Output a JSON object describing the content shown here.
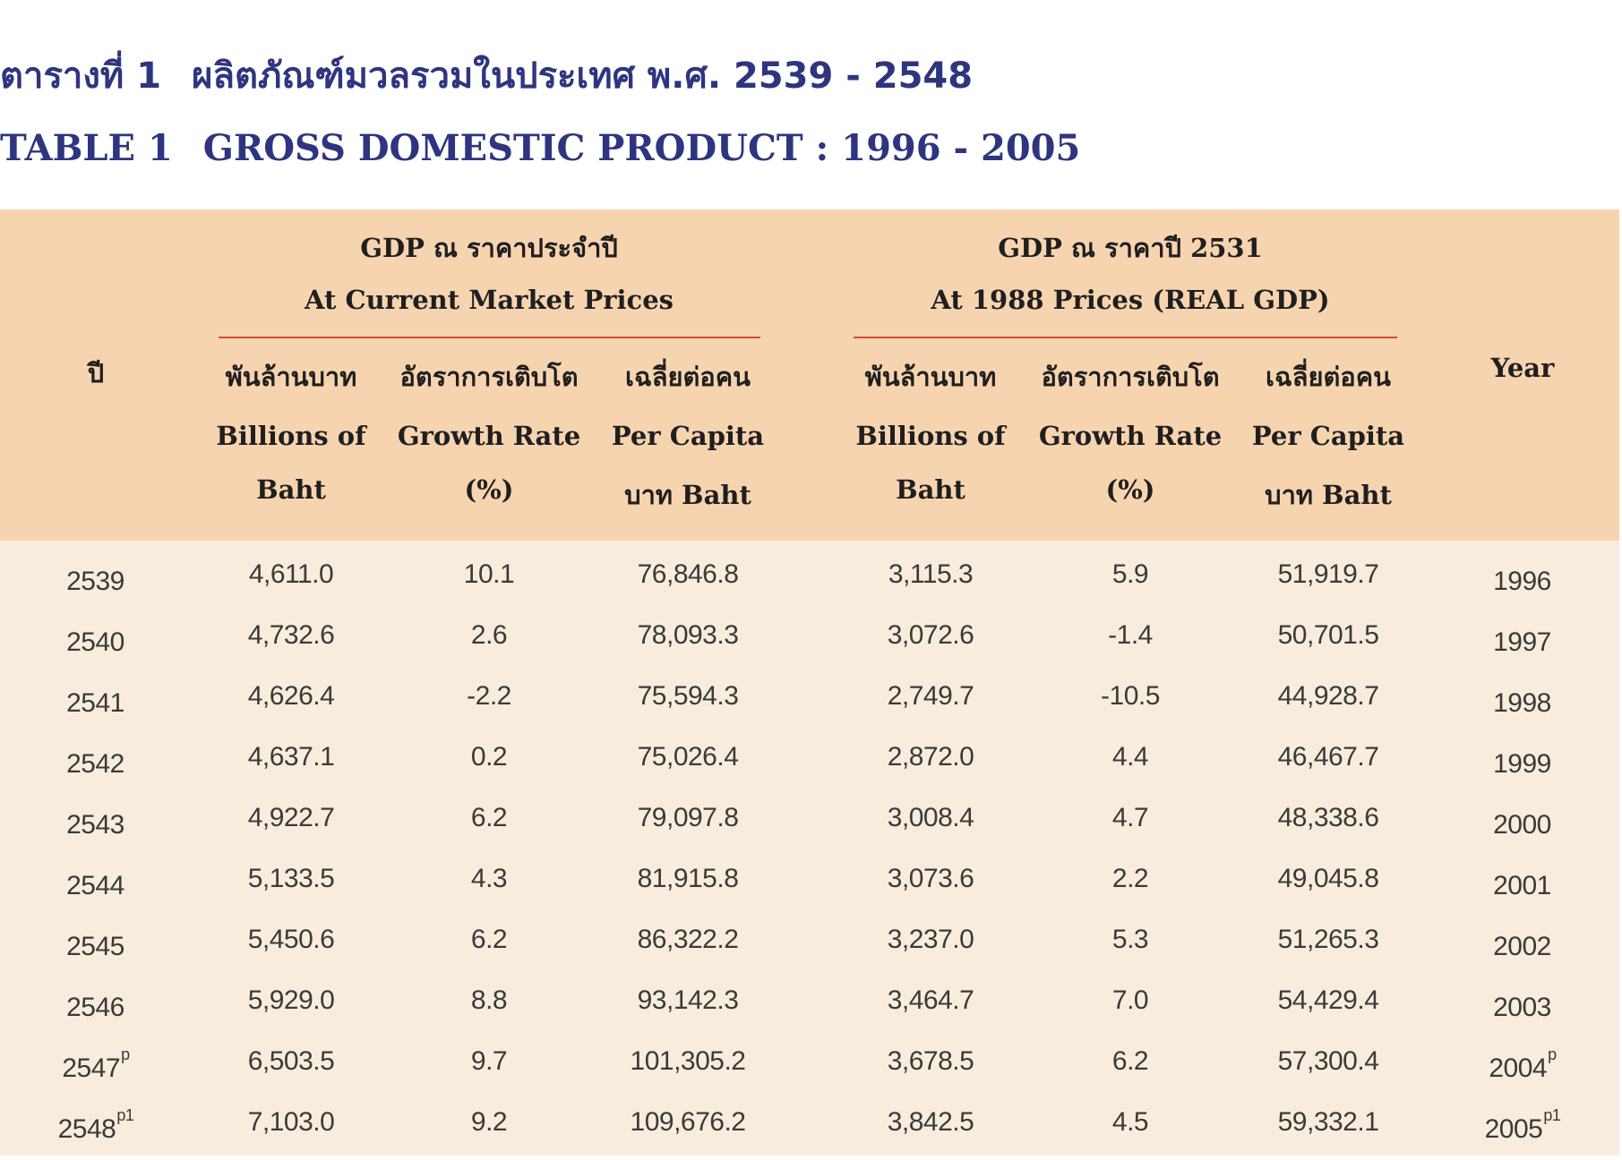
{
  "title": {
    "thai_label": "ตารางที่ 1",
    "thai_text": "ผลิตภัณฑ์มวลรวมในประเทศ พ.ศ. 2539 - 2548",
    "en_label": "TABLE 1",
    "en_text": "GROSS DOMESTIC PRODUCT : 1996 - 2005"
  },
  "header": {
    "year_th": "ปี",
    "year_en": "Year",
    "group_current": {
      "thai": "GDP ณ ราคาประจำปี",
      "english": "At Current Market Prices"
    },
    "group_real": {
      "thai": "GDP ณ ราคาปี 2531",
      "english": "At 1988 Prices (REAL GDP)"
    },
    "col_billions": {
      "thai": "พันล้านบาท",
      "en1": "Billions of",
      "en2": "Baht"
    },
    "col_growth": {
      "thai": "อัตราการเติบโต",
      "en1": "Growth Rate",
      "en2": "(%)"
    },
    "col_percapita": {
      "thai": "เฉลี่ยต่อคน",
      "en1": "Per Capita",
      "en2": "บาท Baht"
    }
  },
  "rows": [
    {
      "th_year": "2539",
      "th_sup": "",
      "cur_bn": "4,611.0",
      "cur_gr": "10.1",
      "cur_pc": "76,846.8",
      "real_bn": "3,115.3",
      "real_gr": "5.9",
      "real_pc": "51,919.7",
      "year": "1996",
      "year_sup": ""
    },
    {
      "th_year": "2540",
      "th_sup": "",
      "cur_bn": "4,732.6",
      "cur_gr": "2.6",
      "cur_pc": "78,093.3",
      "real_bn": "3,072.6",
      "real_gr": "-1.4",
      "real_pc": "50,701.5",
      "year": "1997",
      "year_sup": ""
    },
    {
      "th_year": "2541",
      "th_sup": "",
      "cur_bn": "4,626.4",
      "cur_gr": "-2.2",
      "cur_pc": "75,594.3",
      "real_bn": "2,749.7",
      "real_gr": "-10.5",
      "real_pc": "44,928.7",
      "year": "1998",
      "year_sup": ""
    },
    {
      "th_year": "2542",
      "th_sup": "",
      "cur_bn": "4,637.1",
      "cur_gr": "0.2",
      "cur_pc": "75,026.4",
      "real_bn": "2,872.0",
      "real_gr": "4.4",
      "real_pc": "46,467.7",
      "year": "1999",
      "year_sup": ""
    },
    {
      "th_year": "2543",
      "th_sup": "",
      "cur_bn": "4,922.7",
      "cur_gr": "6.2",
      "cur_pc": "79,097.8",
      "real_bn": "3,008.4",
      "real_gr": "4.7",
      "real_pc": "48,338.6",
      "year": "2000",
      "year_sup": ""
    },
    {
      "th_year": "2544",
      "th_sup": "",
      "cur_bn": "5,133.5",
      "cur_gr": "4.3",
      "cur_pc": "81,915.8",
      "real_bn": "3,073.6",
      "real_gr": "2.2",
      "real_pc": "49,045.8",
      "year": "2001",
      "year_sup": ""
    },
    {
      "th_year": "2545",
      "th_sup": "",
      "cur_bn": "5,450.6",
      "cur_gr": "6.2",
      "cur_pc": "86,322.2",
      "real_bn": "3,237.0",
      "real_gr": "5.3",
      "real_pc": "51,265.3",
      "year": "2002",
      "year_sup": ""
    },
    {
      "th_year": "2546",
      "th_sup": "",
      "cur_bn": "5,929.0",
      "cur_gr": "8.8",
      "cur_pc": "93,142.3",
      "real_bn": "3,464.7",
      "real_gr": "7.0",
      "real_pc": "54,429.4",
      "year": "2003",
      "year_sup": ""
    },
    {
      "th_year": "2547",
      "th_sup": "p",
      "cur_bn": "6,503.5",
      "cur_gr": "9.7",
      "cur_pc": "101,305.2",
      "real_bn": "3,678.5",
      "real_gr": "6.2",
      "real_pc": "57,300.4",
      "year": "2004",
      "year_sup": "p"
    },
    {
      "th_year": "2548",
      "th_sup": "p1",
      "cur_bn": "7,103.0",
      "cur_gr": "9.2",
      "cur_pc": "109,676.2",
      "real_bn": "3,842.5",
      "real_gr": "4.5",
      "real_pc": "59,332.1",
      "year": "2005",
      "year_sup": "p1"
    }
  ],
  "colors": {
    "title": "#2e3580",
    "header_bg": "#f7d4b0",
    "body_bg": "#f8eddc",
    "group_rule": "#c8532a"
  }
}
